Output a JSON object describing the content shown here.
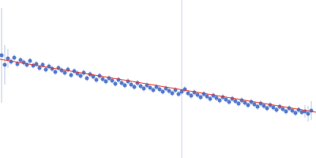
{
  "chart_data": {
    "type": "scatter",
    "marker": "circle",
    "color": "#3a66c4",
    "error_color": "#b8c8e4",
    "tick_labels": false,
    "grid": false,
    "xlim": [
      0,
      400
    ],
    "ylim": [
      0,
      200
    ],
    "xticks": [],
    "yticks": [],
    "x": [
      2,
      6,
      10,
      14,
      18,
      22,
      26,
      30,
      34,
      38,
      42,
      46,
      50,
      54,
      58,
      62,
      66,
      70,
      74,
      78,
      82,
      86,
      90,
      94,
      98,
      102,
      106,
      110,
      114,
      118,
      122,
      126,
      130,
      134,
      138,
      142,
      146,
      150,
      154,
      158,
      162,
      166,
      170,
      174,
      178,
      182,
      186,
      190,
      194,
      198,
      202,
      206,
      210,
      214,
      218,
      222,
      226,
      230,
      234,
      238,
      242,
      246,
      250,
      254,
      258,
      262,
      266,
      270,
      274,
      278,
      282,
      286,
      290,
      294,
      298,
      302,
      306,
      310,
      314,
      318,
      322,
      326,
      330,
      334,
      338,
      342,
      346,
      350,
      354,
      358,
      362,
      366,
      370,
      374,
      378,
      382,
      386,
      390,
      394
    ],
    "values": [
      130,
      118,
      126,
      122,
      127,
      119,
      124,
      121,
      118,
      123,
      117,
      119,
      114,
      118,
      112,
      116,
      113,
      109,
      114,
      111,
      108,
      112,
      105,
      110,
      107,
      104,
      108,
      101,
      106,
      103,
      99,
      104,
      100,
      97,
      101,
      98,
      94,
      99,
      95,
      92,
      97,
      93,
      90,
      95,
      91,
      88,
      92,
      89,
      86,
      90,
      87,
      84,
      88,
      85,
      82,
      86,
      81,
      84,
      87,
      82,
      79,
      83,
      80,
      77,
      81,
      78,
      75,
      79,
      76,
      73,
      77,
      74,
      71,
      75,
      72,
      69,
      73,
      70,
      67,
      71,
      68,
      65,
      69,
      66,
      63,
      67,
      64,
      61,
      65,
      62,
      59,
      63,
      60,
      57,
      61,
      58,
      59,
      56,
      60
    ],
    "errors": [
      60,
      25,
      12,
      4,
      4,
      4,
      4,
      4,
      4,
      4,
      4,
      4,
      4,
      4,
      4,
      4,
      4,
      4,
      4,
      4,
      4,
      4,
      4,
      4,
      4,
      4,
      4,
      4,
      4,
      4,
      4,
      4,
      4,
      4,
      4,
      4,
      4,
      4,
      4,
      4,
      4,
      4,
      4,
      4,
      4,
      4,
      4,
      4,
      4,
      4,
      4,
      4,
      4,
      4,
      4,
      4,
      4,
      4,
      4,
      4,
      4,
      4,
      4,
      4,
      4,
      4,
      4,
      4,
      4,
      4,
      4,
      4,
      4,
      4,
      4,
      4,
      4,
      4,
      4,
      4,
      4,
      4,
      4,
      4,
      4,
      4,
      4,
      4,
      4,
      4,
      4,
      4,
      4,
      4,
      4,
      4,
      8,
      10,
      12
    ],
    "fit": {
      "type": "line",
      "line_style": "solid",
      "color": "#e8302a",
      "x": [
        0,
        400
      ],
      "values": [
        125,
        58
      ]
    },
    "vertical_line": {
      "x": 230,
      "color": "#c8d4ea"
    }
  }
}
